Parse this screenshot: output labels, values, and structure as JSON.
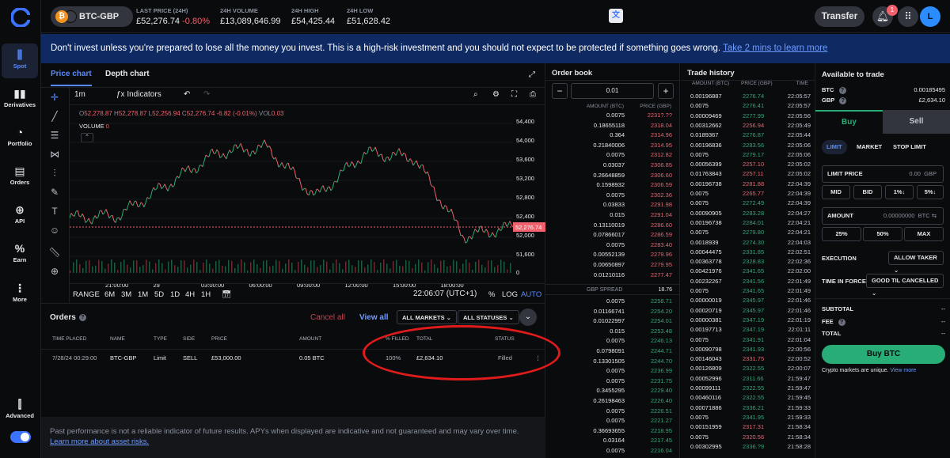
{
  "nav": {
    "items": [
      {
        "label": "Spot",
        "icon": "candles-icon"
      },
      {
        "label": "Derivatives",
        "icon": "bars-icon"
      },
      {
        "label": "Portfolio",
        "icon": "pie-icon"
      },
      {
        "label": "Orders",
        "icon": "document-icon"
      },
      {
        "label": "API",
        "icon": "api-icon"
      },
      {
        "label": "Earn",
        "icon": "percent-icon"
      },
      {
        "label": "More",
        "icon": "dots-icon"
      }
    ],
    "advanced_label": "Advanced"
  },
  "header": {
    "pair": "BTC-GBP",
    "stats": [
      {
        "label": "LAST PRICE (24H)",
        "value": "£52,276.74",
        "change": "-0.80%"
      },
      {
        "label": "24H VOLUME",
        "value": "£13,089,646.99"
      },
      {
        "label": "24H HIGH",
        "value": "£54,425.44"
      },
      {
        "label": "24H LOW",
        "value": "£51,628.42"
      }
    ],
    "transfer": "Transfer",
    "notif_count": "1",
    "avatar": "L"
  },
  "banner": {
    "text": "Don't invest unless you're prepared to lose all the money you invest. This is a high-risk investment and you should not expect to be protected if something goes wrong.",
    "link": "Take 2 mins to learn more"
  },
  "chart": {
    "tabs": [
      "Price chart",
      "Depth chart"
    ],
    "interval": "1m",
    "indicators": "Indicators",
    "ohlc": {
      "o": "52,278.87",
      "h": "52,278.87",
      "l": "52,256.94",
      "c": "52,276.74",
      "chg": "-6.82 (-0.01%)",
      "vol": "0.03"
    },
    "volume_label": "VOLUME",
    "volume_value": "0",
    "price_ticks": [
      "54,400",
      "54,000",
      "53,600",
      "53,200",
      "52,800",
      "52,400",
      "52,000",
      "51,600",
      "0"
    ],
    "last_price_tag": "52,276.74",
    "time_ticks": [
      "21:00:00",
      "29",
      "03:00:00",
      "06:00:00",
      "09:00:00",
      "12:00:00",
      "15:00:00",
      "18:00:00"
    ],
    "ranges": [
      "RANGE",
      "6M",
      "3M",
      "1M",
      "5D",
      "1D",
      "4H",
      "1H"
    ],
    "clock": "22:06:07 (UTC+1)",
    "pct": "%",
    "log": "LOG",
    "auto": "AUTO"
  },
  "chart_data": {
    "type": "line",
    "x": [
      "20:00",
      "21:00",
      "00:00",
      "03:00",
      "06:00",
      "09:00",
      "12:00",
      "15:00",
      "18:00",
      "22:06"
    ],
    "y": [
      52450,
      52500,
      53100,
      53700,
      53800,
      52850,
      53700,
      53600,
      52100,
      52276.74
    ],
    "ylim": [
      51400,
      54500
    ],
    "grid": true
  },
  "orders": {
    "title": "Orders",
    "cancel_all": "Cancel all",
    "view_all": "View all",
    "filter_markets": "ALL MARKETS",
    "filter_statuses": "ALL STATUSES",
    "headers": [
      "TIME PLACED",
      "NAME",
      "TYPE",
      "SIDE",
      "PRICE",
      "AMOUNT",
      "% FILLED",
      "TOTAL",
      "STATUS"
    ],
    "rows": [
      {
        "time": "7/28/24 00:29:00",
        "name": "BTC-GBP",
        "type": "Limit",
        "side": "SELL",
        "price": "£53,000.00",
        "amount": "0.05 BTC",
        "filled": "100%",
        "total": "£2,634.10",
        "status": "Filled"
      }
    ]
  },
  "footer": {
    "text": "Past performance is not a reliable indicator of future results. APYs when displayed are indicative and not guaranteed and may vary over time.",
    "link": "Learn more about asset risks."
  },
  "orderbook": {
    "title": "Order book",
    "step": "0.01",
    "col_amount": "AMOUNT (BTC)",
    "col_price": "PRICE (GBP)",
    "spread_label": "GBP SPREAD",
    "spread_value": "18.76",
    "asks": [
      [
        "0.0075",
        "2231?.??"
      ],
      [
        "0.18655118",
        "2318.04"
      ],
      [
        "0.364",
        "2314.96"
      ],
      [
        "0.21840006",
        "2314.95"
      ],
      [
        "0.0075",
        "2312.82"
      ],
      [
        "0.03037",
        "2306.85"
      ],
      [
        "0.26648859",
        "2306.60"
      ],
      [
        "0.1598932",
        "2306.59"
      ],
      [
        "0.0075",
        "2302.36"
      ],
      [
        "0.03833",
        "2291.98"
      ],
      [
        "0.015",
        "2291.04"
      ],
      [
        "0.13110019",
        "2286.60"
      ],
      [
        "0.07866017",
        "2286.59"
      ],
      [
        "0.0075",
        "2283.40"
      ],
      [
        "0.00552139",
        "2279.96"
      ],
      [
        "0.00650897",
        "2279.95"
      ],
      [
        "0.01210116",
        "2277.47"
      ]
    ],
    "bids": [
      [
        "0.0075",
        "2258.71"
      ],
      [
        "0.01166741",
        "2254.20"
      ],
      [
        "0.01022997",
        "2254.01"
      ],
      [
        "0.015",
        "2253.48"
      ],
      [
        "0.0075",
        "2246.13"
      ],
      [
        "0.0798091",
        "2244.71"
      ],
      [
        "0.13301505",
        "2244.70"
      ],
      [
        "0.0075",
        "2236.99"
      ],
      [
        "0.0075",
        "2231.75"
      ],
      [
        "0.3455295",
        "2229.40"
      ],
      [
        "0.26198463",
        "2226.40"
      ],
      [
        "0.0075",
        "2226.51"
      ],
      [
        "0.0075",
        "2221.27"
      ],
      [
        "0.36693655",
        "2218.95"
      ],
      [
        "0.03164",
        "2217.45"
      ],
      [
        "0.0075",
        "2216.04"
      ]
    ]
  },
  "trades": {
    "title": "Trade history",
    "col_amount": "AMOUNT (BTC)",
    "col_price": "PRICE (GBP)",
    "col_time": "TIME",
    "rows": [
      [
        "0.00196887",
        "2276.74",
        "22:05:57",
        "g"
      ],
      [
        "0.0075",
        "2276.41",
        "22:05:57",
        "g"
      ],
      [
        "0.00009469",
        "2277.99",
        "22:05:56",
        "g"
      ],
      [
        "0.00312662",
        "2256.94",
        "22:05:49",
        "r"
      ],
      [
        "0.0189367",
        "2276.87",
        "22:05:44",
        "g"
      ],
      [
        "0.00196836",
        "2283.56",
        "22:05:06",
        "g"
      ],
      [
        "0.0075",
        "2279.17",
        "22:05:06",
        "g"
      ],
      [
        "0.00056399",
        "2257.10",
        "22:05:02",
        "r"
      ],
      [
        "0.01763843",
        "2257.11",
        "22:05:02",
        "r"
      ],
      [
        "0.00196738",
        "2281.88",
        "22:04:39",
        "r"
      ],
      [
        "0.0075",
        "2265.77",
        "22:04:39",
        "r"
      ],
      [
        "0.0075",
        "2272.49",
        "22:04:39",
        "g"
      ],
      [
        "0.00090905",
        "2283.28",
        "22:04:27",
        "g"
      ],
      [
        "0.00196738",
        "2284.01",
        "22:04:21",
        "g"
      ],
      [
        "0.0075",
        "2279.80",
        "22:04:21",
        "g"
      ],
      [
        "0.0018939",
        "2274.30",
        "22:04:03",
        "g"
      ],
      [
        "0.00044475",
        "2331.85",
        "22:02:51",
        "g"
      ],
      [
        "0.00363778",
        "2328.83",
        "22:02:36",
        "g"
      ],
      [
        "0.00421976",
        "2341.65",
        "22:02:00",
        "g"
      ],
      [
        "0.00232267",
        "2341.56",
        "22:01:49",
        "g"
      ],
      [
        "0.0075",
        "2341.65",
        "22:01:49",
        "g"
      ],
      [
        "0.00000019",
        "2345.97",
        "22:01:46",
        "g"
      ],
      [
        "0.00020719",
        "2345.97",
        "22:01:46",
        "g"
      ],
      [
        "0.00000381",
        "2347.19",
        "22:01:19",
        "g"
      ],
      [
        "0.00197713",
        "2347.19",
        "22:01:11",
        "g"
      ],
      [
        "0.0075",
        "2341.91",
        "22:01:04",
        "g"
      ],
      [
        "0.00090798",
        "2341.93",
        "22:00:56",
        "g"
      ],
      [
        "0.00146043",
        "2331.75",
        "22:00:52",
        "r"
      ],
      [
        "0.00126809",
        "2322.55",
        "22:00:07",
        "g"
      ],
      [
        "0.00052996",
        "2311.66",
        "21:59:47",
        "g"
      ],
      [
        "0.00099111",
        "2322.55",
        "21:59:47",
        "g"
      ],
      [
        "0.00460116",
        "2322.55",
        "21:59:45",
        "g"
      ],
      [
        "0.00071886",
        "2336.21",
        "21:59:33",
        "g"
      ],
      [
        "0.0075",
        "2341.95",
        "21:59:33",
        "g"
      ],
      [
        "0.00151959",
        "2317.31",
        "21:58:34",
        "r"
      ],
      [
        "0.0075",
        "2320.56",
        "21:58:34",
        "r"
      ],
      [
        "0.00302995",
        "2336.?9",
        "21:58:28",
        "g"
      ]
    ]
  },
  "tradepanel": {
    "available": "Available to trade",
    "btc_label": "BTC",
    "btc_value": "0.00185495",
    "gbp_label": "GBP",
    "gbp_value": "£2,634.10",
    "buy": "Buy",
    "sell": "Sell",
    "types": [
      "LIMIT",
      "MARKET",
      "STOP LIMIT"
    ],
    "limit_price": "LIMIT PRICE",
    "limit_value": "0.00",
    "limit_unit": "GBP",
    "price_pills": [
      "MID",
      "BID",
      "1%↓",
      "5%↓"
    ],
    "amount": "AMOUNT",
    "amount_value": "0.00000000",
    "amount_unit": "BTC ⇆",
    "amount_pills": [
      "25%",
      "50%",
      "MAX"
    ],
    "execution": "EXECUTION",
    "execution_value": "ALLOW TAKER",
    "tif": "TIME IN FORCE",
    "tif_value": "GOOD TIL CANCELLED",
    "subtotal": "SUBTOTAL",
    "fee": "FEE",
    "total": "TOTAL",
    "dash": "--",
    "buy_btn": "Buy BTC",
    "note": "Crypto markets are unique.",
    "note_link": "View more"
  }
}
